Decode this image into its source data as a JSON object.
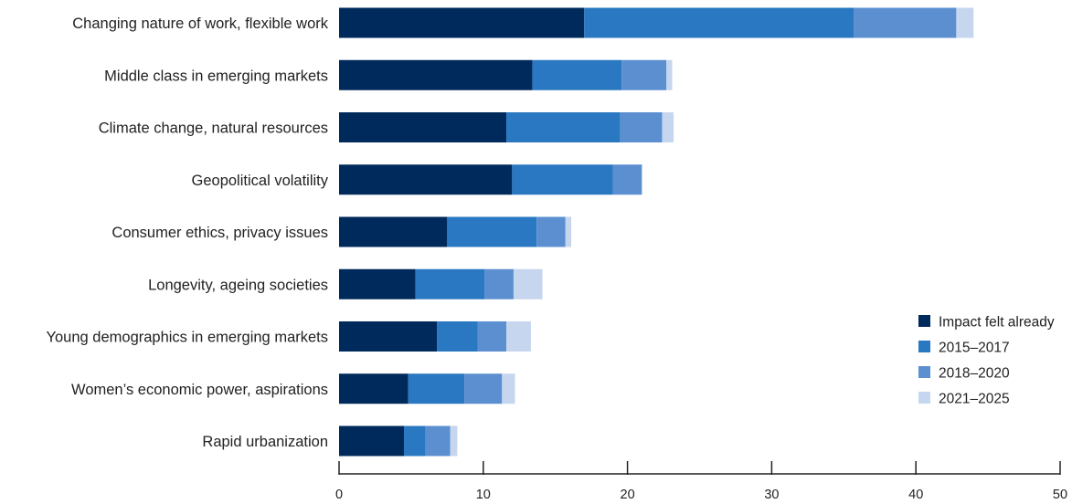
{
  "chart_data": {
    "type": "bar",
    "orientation": "horizontal",
    "stacked": true,
    "categories": [
      "Changing nature of work, flexible work",
      "Middle class in emerging markets",
      "Climate change, natural resources",
      "Geopolitical volatility",
      "Consumer ethics, privacy issues",
      "Longevity, ageing societies",
      "Young demographics in emerging markets",
      "Women’s economic power, aspirations",
      "Rapid urbanization"
    ],
    "series": [
      {
        "name": "Impact felt already",
        "color": "#002a5c",
        "values": [
          17.0,
          13.4,
          11.6,
          12.0,
          7.5,
          5.3,
          6.8,
          4.8,
          4.5
        ]
      },
      {
        "name": "2015–2017",
        "color": "#2a78c1",
        "values": [
          18.7,
          6.2,
          7.9,
          7.0,
          6.2,
          4.8,
          2.8,
          3.9,
          1.5
        ]
      },
      {
        "name": "2018–2020",
        "color": "#5b8fd0",
        "values": [
          7.1,
          3.1,
          2.9,
          2.0,
          2.0,
          2.0,
          2.0,
          2.6,
          1.7
        ]
      },
      {
        "name": "2021–2025",
        "color": "#c6d6ee",
        "values": [
          1.2,
          0.4,
          0.8,
          0.0,
          0.4,
          2.0,
          1.7,
          0.9,
          0.5
        ]
      }
    ],
    "xlim": [
      0,
      50
    ],
    "xticks": [
      0,
      10,
      20,
      30,
      40,
      50
    ],
    "title": "",
    "xlabel": "",
    "ylabel": "",
    "grid": false,
    "legend_position": "right"
  }
}
